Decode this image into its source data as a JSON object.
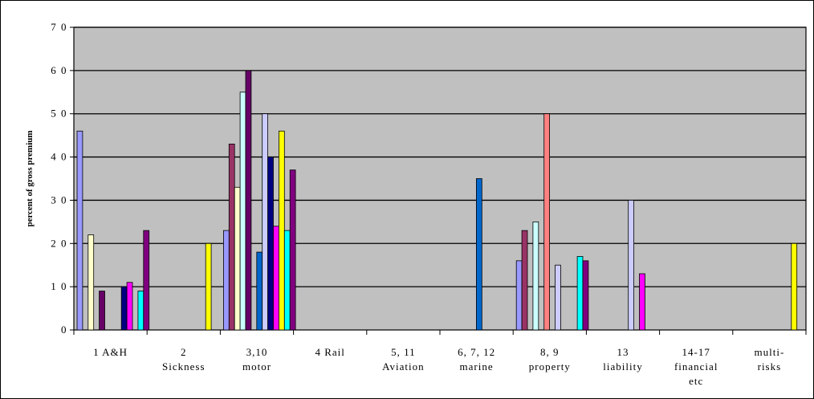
{
  "chart_data": {
    "type": "bar",
    "title": "",
    "xlabel": "",
    "ylabel": "percent of gross premium",
    "ylim": [
      0,
      70
    ],
    "yticks": [
      0,
      10,
      20,
      30,
      40,
      50,
      60,
      70
    ],
    "ytick_labels": [
      "0",
      "1 0",
      "2 0",
      "3 0",
      "4 0",
      "5 0",
      "6 0",
      "7 0"
    ],
    "grid": true,
    "plot_background": "#C0C0C0",
    "categories": [
      [
        "1  A&H"
      ],
      [
        "2",
        "Sickness"
      ],
      [
        "3,10",
        "motor"
      ],
      [
        "4 Rail"
      ],
      [
        "5, 11",
        "Aviation"
      ],
      [
        "6, 7, 12",
        "marine"
      ],
      [
        "8, 9",
        "property"
      ],
      [
        "13",
        "liability"
      ],
      [
        "14-17",
        "financial",
        "etc"
      ],
      [
        "multi-",
        "risks"
      ]
    ],
    "series": [
      {
        "color": "#9999FF",
        "values": [
          46,
          null,
          23,
          null,
          null,
          null,
          16,
          null,
          null,
          null
        ]
      },
      {
        "color": "#993366",
        "values": [
          null,
          null,
          43,
          null,
          null,
          null,
          23,
          null,
          null,
          null
        ]
      },
      {
        "color": "#FFFFCC",
        "values": [
          22,
          null,
          33,
          null,
          null,
          null,
          null,
          null,
          null,
          null
        ]
      },
      {
        "color": "#CCFFFF",
        "values": [
          null,
          null,
          55,
          null,
          null,
          null,
          25,
          null,
          null,
          null
        ]
      },
      {
        "color": "#660066",
        "values": [
          9,
          null,
          60,
          null,
          null,
          null,
          null,
          null,
          null,
          null
        ]
      },
      {
        "color": "#FF8080",
        "values": [
          null,
          null,
          null,
          null,
          null,
          null,
          50,
          null,
          null,
          null
        ]
      },
      {
        "color": "#0066CC",
        "values": [
          null,
          null,
          18,
          null,
          null,
          35,
          null,
          null,
          null,
          null
        ]
      },
      {
        "color": "#CCCCFF",
        "values": [
          null,
          null,
          50,
          null,
          null,
          null,
          15,
          30,
          null,
          null
        ]
      },
      {
        "color": "#000080",
        "values": [
          10,
          null,
          40,
          null,
          null,
          null,
          null,
          null,
          null,
          null
        ]
      },
      {
        "color": "#FF00FF",
        "values": [
          11,
          null,
          24,
          null,
          null,
          null,
          null,
          13,
          null,
          null
        ]
      },
      {
        "color": "#FFFF00",
        "values": [
          null,
          20,
          46,
          null,
          null,
          null,
          null,
          null,
          null,
          20
        ]
      },
      {
        "color": "#00FFFF",
        "values": [
          9,
          null,
          23,
          null,
          null,
          null,
          17,
          null,
          null,
          null
        ]
      },
      {
        "color": "#800080",
        "values": [
          23,
          null,
          37,
          null,
          null,
          null,
          16,
          null,
          null,
          null
        ]
      }
    ]
  }
}
